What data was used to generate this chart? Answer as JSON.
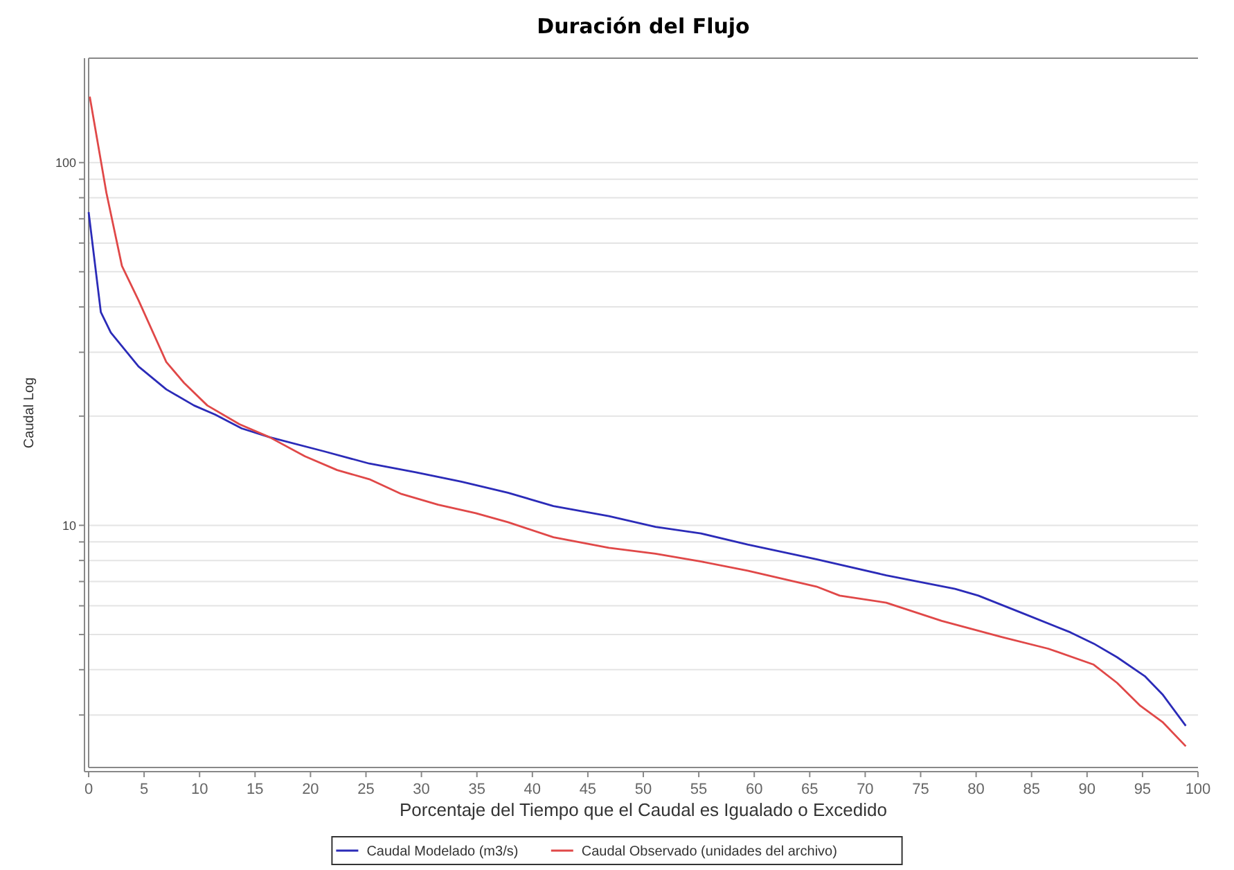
{
  "chart_data": {
    "type": "line",
    "title": "Duración del Flujo",
    "xlabel": "Porcentaje del Tiempo que el Caudal es Igualado o Excedido",
    "ylabel": "Caudal Log",
    "log": "y",
    "grid": "y",
    "legend": "bottom",
    "line_style": "solid",
    "marker": "none",
    "xlim": [
      0,
      100
    ],
    "xticks": [
      0,
      5,
      10,
      15,
      20,
      25,
      30,
      35,
      40,
      45,
      50,
      55,
      60,
      65,
      70,
      75,
      80,
      85,
      90,
      95,
      100
    ],
    "ylim": [
      2.15,
      194
    ],
    "yticks": [
      {
        "value": 3,
        "label": null
      },
      {
        "value": 4,
        "label": null
      },
      {
        "value": 5,
        "label": null
      },
      {
        "value": 6,
        "label": null
      },
      {
        "value": 7,
        "label": null
      },
      {
        "value": 8,
        "label": null
      },
      {
        "value": 9,
        "label": null
      },
      10,
      {
        "value": 20,
        "label": null
      },
      {
        "value": 30,
        "label": null
      },
      {
        "value": 40,
        "label": null
      },
      {
        "value": 50,
        "label": null
      },
      {
        "value": 60,
        "label": null
      },
      {
        "value": 70,
        "label": null
      },
      {
        "value": 80,
        "label": null
      },
      {
        "value": 90,
        "label": null
      },
      100
    ],
    "series": [
      {
        "name": "Caudal Modelado (m3/s)",
        "color": "#2b2bb8",
        "x": [
          0,
          1.1,
          2,
          4.5,
          7,
          9.5,
          11.4,
          13.8,
          16.3,
          21.2,
          25.3,
          29.5,
          33.6,
          37.8,
          41.9,
          46.9,
          51.1,
          55.2,
          59.4,
          65.6,
          71.9,
          78.1,
          80.2,
          84.4,
          88.5,
          90.6,
          92.7,
          95.2,
          96.8,
          98.9
        ],
        "values": [
          73,
          38.7,
          34,
          27.4,
          23.7,
          21.4,
          20.2,
          18.5,
          17.5,
          16,
          14.8,
          14,
          13.2,
          12.3,
          11.3,
          10.6,
          9.9,
          9.5,
          8.85,
          8.06,
          7.28,
          6.68,
          6.4,
          5.69,
          5.07,
          4.72,
          4.33,
          3.84,
          3.42,
          2.8
        ]
      },
      {
        "name": "Caudal Observado (unidades del archivo)",
        "color": "#e04848",
        "x": [
          0.1,
          1.6,
          3,
          4.5,
          7,
          8.6,
          10.7,
          13.6,
          16.3,
          19.5,
          22.4,
          25.3,
          28.2,
          31.5,
          34.9,
          37.8,
          41.9,
          46.9,
          51.1,
          55.2,
          59.4,
          65.6,
          67.7,
          71.9,
          76.9,
          82.3,
          86.5,
          90.6,
          92.7,
          94.8,
          96.8,
          98.9
        ],
        "values": [
          152,
          82.6,
          51.9,
          41.7,
          28.2,
          24.7,
          21.4,
          19,
          17.5,
          15.5,
          14.2,
          13.4,
          12.2,
          11.4,
          10.8,
          10.2,
          9.27,
          8.67,
          8.35,
          7.95,
          7.5,
          6.78,
          6.4,
          6.12,
          5.45,
          4.92,
          4.57,
          4.13,
          3.68,
          3.18,
          2.87,
          2.46
        ]
      }
    ]
  }
}
